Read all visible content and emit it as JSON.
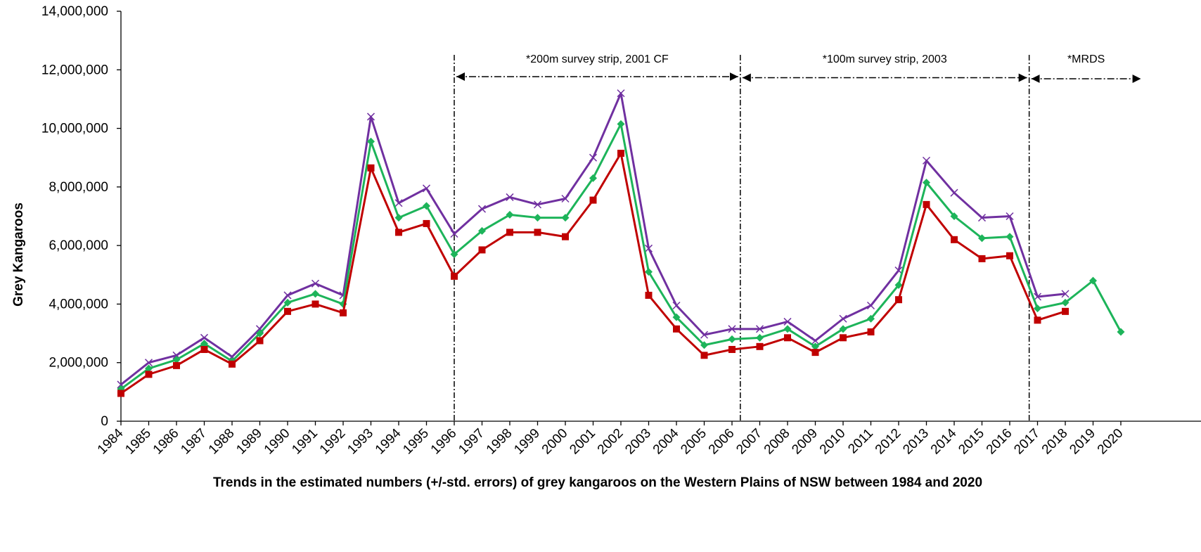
{
  "chart_data": {
    "type": "line",
    "ylabel": "Grey Kangaroos",
    "caption": "Trends in the estimated numbers (+/-std. errors) of grey kangaroos on the Western Plains of NSW between 1984 and 2020",
    "ylim": [
      0,
      14000000
    ],
    "yticks": [
      0,
      2000000,
      4000000,
      6000000,
      8000000,
      10000000,
      12000000,
      14000000
    ],
    "ytick_labels": [
      "0",
      "2,000,000",
      "4,000,000",
      "6,000,000",
      "8,000,000",
      "10,000,000",
      "12,000,000",
      "14,000,000"
    ],
    "categories": [
      "1984",
      "1985",
      "1986",
      "1987",
      "1988",
      "1989",
      "1990",
      "1991",
      "1992",
      "1993",
      "1994",
      "1995",
      "1996",
      "1997",
      "1998",
      "1999",
      "2000",
      "2001",
      "2002",
      "2003",
      "2004",
      "2005",
      "2006",
      "2007",
      "2008",
      "2009",
      "2010",
      "2011",
      "2012",
      "2013",
      "2014",
      "2015",
      "2016",
      "2017",
      "2018",
      "2019",
      "2020"
    ],
    "grid": false,
    "colors": {
      "upper": "#7030A0",
      "estimate": "#1DB45A",
      "lower": "#C00000",
      "axis": "#000000"
    },
    "series": [
      {
        "key": "upper",
        "marker": "x",
        "values": [
          1250000,
          2000000,
          2250000,
          2850000,
          2200000,
          3150000,
          4300000,
          4700000,
          4300000,
          10400000,
          7450000,
          7950000,
          6400000,
          7250000,
          7650000,
          7400000,
          7600000,
          9000000,
          11200000,
          5900000,
          3950000,
          2950000,
          3150000,
          3150000,
          3400000,
          2750000,
          3500000,
          3950000,
          5150000,
          8900000,
          7800000,
          6950000,
          7000000,
          4250000,
          4350000,
          null,
          null
        ]
      },
      {
        "key": "estimate",
        "marker": "diamond",
        "values": [
          1100000,
          1800000,
          2100000,
          2650000,
          2050000,
          3000000,
          4050000,
          4350000,
          4000000,
          9550000,
          6950000,
          7350000,
          5700000,
          6500000,
          7050000,
          6950000,
          6950000,
          8300000,
          10150000,
          5100000,
          3550000,
          2600000,
          2800000,
          2850000,
          3150000,
          2550000,
          3150000,
          3500000,
          4650000,
          8150000,
          7000000,
          6250000,
          6300000,
          3850000,
          4050000,
          4800000,
          3050000
        ]
      },
      {
        "key": "lower",
        "marker": "square",
        "values": [
          950000,
          1600000,
          1900000,
          2450000,
          1950000,
          2750000,
          3750000,
          4000000,
          3700000,
          8650000,
          6450000,
          6750000,
          4950000,
          5850000,
          6450000,
          6450000,
          6300000,
          7550000,
          9150000,
          4300000,
          3150000,
          2250000,
          2450000,
          2550000,
          2850000,
          2350000,
          2850000,
          3050000,
          4150000,
          7400000,
          6200000,
          5550000,
          5650000,
          3450000,
          3750000,
          null,
          null
        ]
      }
    ],
    "annotations": [
      {
        "label": "*200m survey strip, 2001 CF",
        "from": "1996",
        "to": "2006.3"
      },
      {
        "label": "*100m survey strip, 2003",
        "from": "2006.3",
        "to": "2016.7"
      },
      {
        "label": "*MRDS",
        "from": "2016.7",
        "to": "2020.8"
      }
    ]
  }
}
